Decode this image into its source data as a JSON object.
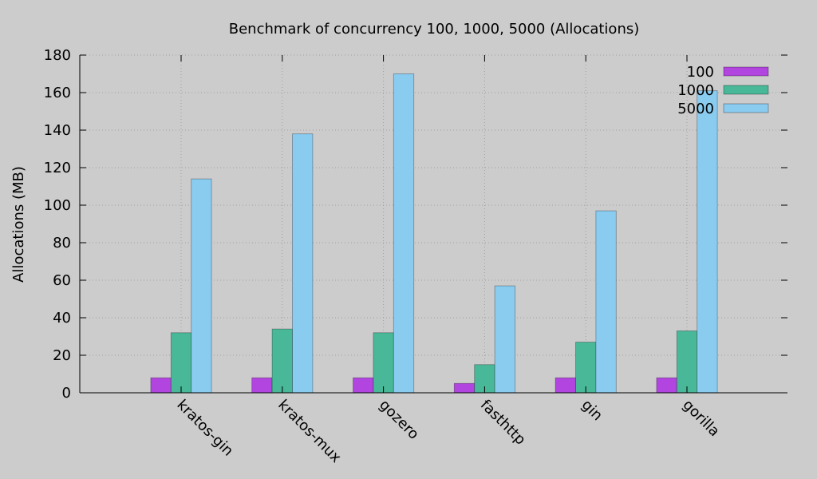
{
  "chart_data": {
    "type": "bar",
    "title": "Benchmark of concurrency 100, 1000, 5000 (Allocations)",
    "xlabel": "",
    "ylabel": "Allocations (MB)",
    "ylim": [
      0,
      180
    ],
    "yticks": [
      "0",
      "20",
      "40",
      "60",
      "80",
      "100",
      "120",
      "140",
      "160",
      "180"
    ],
    "grid": true,
    "legend_position": "top-right",
    "categories": [
      "kratos-gin",
      "kratos-mux",
      "gozero",
      "fasthttp",
      "gin",
      "gorilla"
    ],
    "series": [
      {
        "name": "100",
        "color": "#b244e0",
        "values": [
          8,
          8,
          8,
          5,
          8,
          8
        ]
      },
      {
        "name": "1000",
        "color": "#48b898",
        "values": [
          32,
          34,
          32,
          15,
          27,
          33
        ]
      },
      {
        "name": "5000",
        "color": "#8acbf0",
        "values": [
          114,
          138,
          170,
          57,
          97,
          161
        ]
      }
    ]
  }
}
